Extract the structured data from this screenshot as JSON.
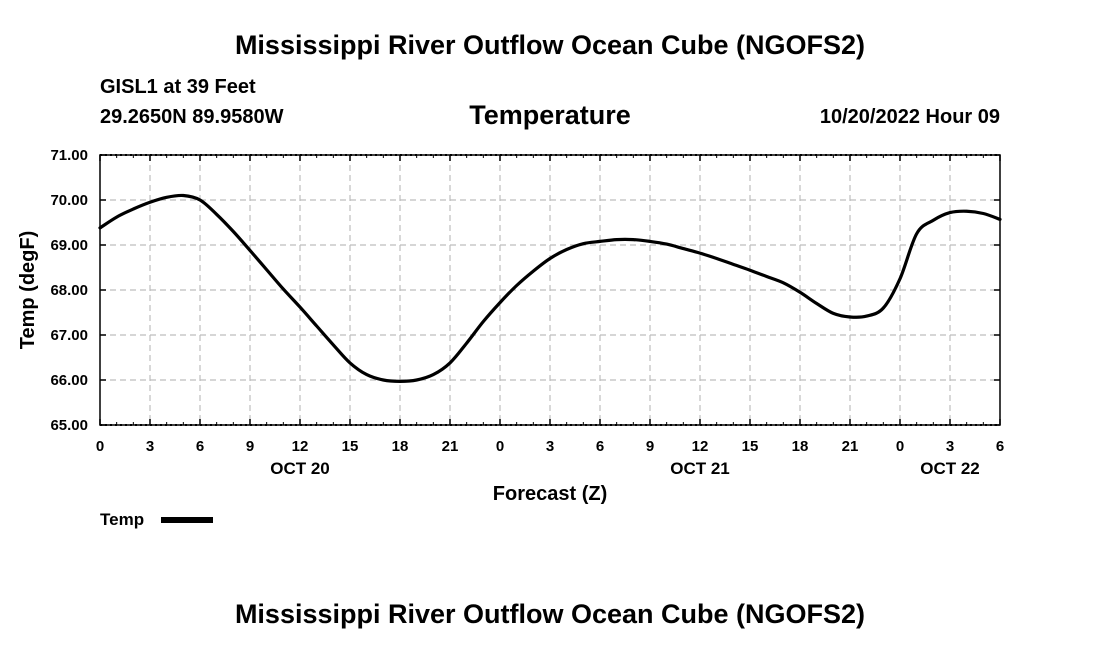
{
  "header": {
    "title": "Mississippi River Outflow Ocean Cube (NGOFS2)",
    "station": "GISL1 at 39 Feet",
    "coordinates": "29.2650N  89.9580W",
    "subtitle": "Temperature",
    "datetime": "10/20/2022 Hour 09"
  },
  "footer": {
    "title": "Mississippi River Outflow Ocean Cube (NGOFS2)"
  },
  "chart_data": {
    "type": "line",
    "title": "Temperature",
    "xlabel": "Forecast (Z)",
    "ylabel": "Temp (degF)",
    "xlim": [
      0,
      54
    ],
    "ylim": [
      65,
      71
    ],
    "grid": true,
    "x_tick_labels": [
      "0",
      "3",
      "6",
      "9",
      "12",
      "15",
      "18",
      "21",
      "0",
      "3",
      "6",
      "9",
      "12",
      "15",
      "18",
      "21",
      "0",
      "3",
      "6"
    ],
    "day_labels": [
      {
        "label": "OCT 20",
        "hour": 12
      },
      {
        "label": "OCT 21",
        "hour": 36
      },
      {
        "label": "OCT 22",
        "hour": 51
      }
    ],
    "y_ticks": [
      65,
      66,
      67,
      68,
      69,
      70,
      71
    ],
    "y_tick_labels": [
      "65.00",
      "66.00",
      "67.00",
      "68.00",
      "69.00",
      "70.00",
      "71.00"
    ],
    "legend": [
      {
        "name": "Temp",
        "color": "#000000"
      }
    ],
    "legend_position": "bottom-left",
    "series": [
      {
        "name": "Temp",
        "color": "#000000",
        "x": [
          0,
          1,
          2,
          3,
          4,
          5,
          6,
          7,
          8,
          9,
          10,
          11,
          12,
          13,
          14,
          15,
          16,
          17,
          18,
          19,
          20,
          21,
          22,
          23,
          24,
          25,
          26,
          27,
          28,
          29,
          30,
          31,
          32,
          33,
          34,
          35,
          36,
          37,
          38,
          39,
          40,
          41,
          42,
          43,
          44,
          45,
          46,
          47,
          48,
          49,
          50,
          51,
          52,
          53,
          54
        ],
        "values": [
          69.38,
          69.62,
          69.8,
          69.95,
          70.06,
          70.1,
          70.0,
          69.68,
          69.3,
          68.88,
          68.45,
          68.02,
          67.62,
          67.2,
          66.78,
          66.38,
          66.12,
          66.0,
          65.97,
          66.0,
          66.12,
          66.38,
          66.82,
          67.3,
          67.72,
          68.1,
          68.42,
          68.7,
          68.9,
          69.03,
          69.08,
          69.12,
          69.12,
          69.08,
          69.02,
          68.92,
          68.82,
          68.7,
          68.57,
          68.44,
          68.3,
          68.16,
          67.95,
          67.7,
          67.48,
          67.4,
          67.42,
          67.6,
          68.25,
          69.25,
          69.55,
          69.72,
          69.75,
          69.7,
          69.57
        ]
      }
    ]
  }
}
